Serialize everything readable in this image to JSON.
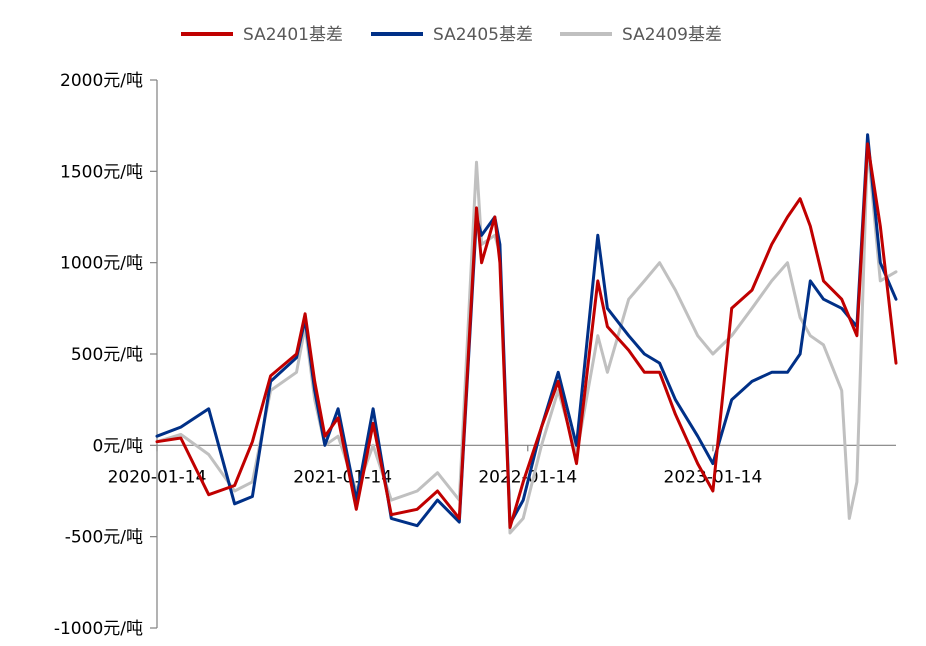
{
  "chart_data": {
    "type": "line",
    "title": "",
    "xlabel": "",
    "ylabel": "",
    "ylim": [
      -1000,
      2000
    ],
    "y_ticks": [
      2000,
      1500,
      1000,
      500,
      0,
      -500,
      -1000
    ],
    "y_tick_labels": [
      "2000元/吨",
      "1500元/吨",
      "1000元/吨",
      "500元/吨",
      "0元/吨",
      "-500元/吨",
      "-1000元/吨"
    ],
    "x_tick_labels": [
      "2020-01-14",
      "2021-01-14",
      "2022-01-14",
      "2023-01-14"
    ],
    "x_tick_values": [
      "2020-01-14",
      "2021-01-14",
      "2022-01-14",
      "2023-01-14"
    ],
    "xlim": [
      "2020-01-14",
      "2024-01-10"
    ],
    "legend_position": "top",
    "grid": false,
    "series": [
      {
        "name": "SA2401基差",
        "color": "#c00000",
        "x": [
          "2020-01-14",
          "2020-03-01",
          "2020-04-25",
          "2020-06-15",
          "2020-07-20",
          "2020-08-25",
          "2020-10-15",
          "2020-11-01",
          "2020-11-20",
          "2020-12-10",
          "2021-01-05",
          "2021-02-10",
          "2021-03-15",
          "2021-04-20",
          "2021-06-10",
          "2021-07-20",
          "2021-09-01",
          "2021-10-05",
          "2021-10-15",
          "2021-11-10",
          "2021-11-20",
          "2021-12-10",
          "2022-01-05",
          "2022-02-10",
          "2022-03-15",
          "2022-04-20",
          "2022-06-01",
          "2022-06-20",
          "2022-08-01",
          "2022-09-01",
          "2022-10-01",
          "2022-11-01",
          "2022-12-15",
          "2023-01-14",
          "2023-02-20",
          "2023-04-01",
          "2023-05-10",
          "2023-06-10",
          "2023-07-05",
          "2023-07-25",
          "2023-08-20",
          "2023-09-25",
          "2023-10-10",
          "2023-10-25",
          "2023-11-15",
          "2023-12-10",
          "2024-01-10"
        ],
        "values": [
          20,
          40,
          -270,
          -220,
          20,
          380,
          500,
          720,
          350,
          50,
          150,
          -350,
          120,
          -380,
          -350,
          -250,
          -400,
          1300,
          1000,
          1250,
          1000,
          -450,
          -200,
          100,
          350,
          -100,
          900,
          650,
          520,
          400,
          400,
          170,
          -100,
          -250,
          750,
          850,
          1100,
          1250,
          1350,
          1200,
          900,
          800,
          700,
          600,
          1650,
          1200,
          450
        ]
      },
      {
        "name": "SA2405基差",
        "color": "#003087",
        "x": [
          "2020-01-14",
          "2020-03-01",
          "2020-04-25",
          "2020-06-15",
          "2020-07-20",
          "2020-08-25",
          "2020-10-15",
          "2020-11-01",
          "2020-11-20",
          "2020-12-10",
          "2021-01-05",
          "2021-02-10",
          "2021-03-15",
          "2021-04-20",
          "2021-06-10",
          "2021-07-20",
          "2021-09-01",
          "2021-10-05",
          "2021-10-15",
          "2021-11-10",
          "2021-11-20",
          "2021-12-10",
          "2022-01-05",
          "2022-02-10",
          "2022-03-15",
          "2022-04-20",
          "2022-06-01",
          "2022-06-20",
          "2022-08-01",
          "2022-09-01",
          "2022-10-01",
          "2022-11-01",
          "2022-12-15",
          "2023-01-14",
          "2023-02-20",
          "2023-04-01",
          "2023-05-10",
          "2023-06-10",
          "2023-07-05",
          "2023-07-25",
          "2023-08-20",
          "2023-09-25",
          "2023-10-10",
          "2023-10-25",
          "2023-11-15",
          "2023-12-10",
          "2024-01-10"
        ],
        "values": [
          50,
          100,
          200,
          -320,
          -280,
          350,
          480,
          690,
          300,
          0,
          200,
          -300,
          200,
          -400,
          -440,
          -300,
          -420,
          1250,
          1150,
          1250,
          1100,
          -430,
          -300,
          100,
          400,
          0,
          1150,
          750,
          600,
          500,
          450,
          250,
          50,
          -100,
          250,
          350,
          400,
          400,
          500,
          900,
          800,
          750,
          700,
          650,
          1700,
          1000,
          800
        ]
      },
      {
        "name": "SA2409基差",
        "color": "#c0c0c0",
        "x": [
          "2020-01-14",
          "2020-03-01",
          "2020-04-25",
          "2020-06-15",
          "2020-07-20",
          "2020-08-25",
          "2020-10-15",
          "2020-11-01",
          "2020-11-20",
          "2020-12-10",
          "2021-01-05",
          "2021-02-10",
          "2021-03-15",
          "2021-04-20",
          "2021-06-10",
          "2021-07-20",
          "2021-09-01",
          "2021-10-05",
          "2021-10-15",
          "2021-11-10",
          "2021-11-20",
          "2021-12-10",
          "2022-01-05",
          "2022-02-10",
          "2022-03-15",
          "2022-04-20",
          "2022-06-01",
          "2022-06-20",
          "2022-08-01",
          "2022-09-01",
          "2022-10-01",
          "2022-11-01",
          "2022-12-15",
          "2023-01-14",
          "2023-02-20",
          "2023-04-01",
          "2023-05-10",
          "2023-06-10",
          "2023-07-05",
          "2023-07-25",
          "2023-08-20",
          "2023-09-25",
          "2023-10-10",
          "2023-10-25",
          "2023-11-15",
          "2023-12-10",
          "2024-01-10"
        ],
        "values": [
          20,
          60,
          -50,
          -250,
          -200,
          300,
          400,
          650,
          250,
          0,
          50,
          -250,
          0,
          -300,
          -250,
          -150,
          -300,
          1550,
          1100,
          1150,
          1050,
          -480,
          -400,
          0,
          300,
          -50,
          600,
          400,
          800,
          900,
          1000,
          850,
          600,
          500,
          600,
          750,
          900,
          1000,
          700,
          600,
          550,
          300,
          -400,
          -200,
          1650,
          900,
          950
        ]
      }
    ]
  }
}
